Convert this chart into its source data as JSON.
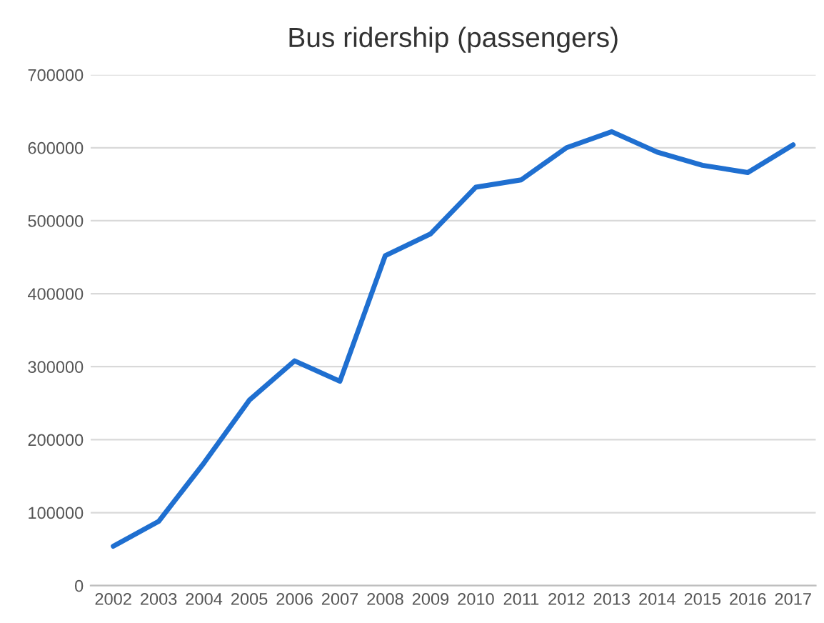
{
  "chart_data": {
    "type": "line",
    "title": "Bus ridership (passengers)",
    "categories": [
      "2002",
      "2003",
      "2004",
      "2005",
      "2006",
      "2007",
      "2008",
      "2009",
      "2010",
      "2011",
      "2012",
      "2013",
      "2014",
      "2015",
      "2016",
      "2017"
    ],
    "series": [
      {
        "color": "#1f6fd0",
        "values": [
          54000,
          88000,
          168000,
          254000,
          308000,
          280000,
          452000,
          482000,
          546000,
          556000,
          600000,
          622000,
          594000,
          576000,
          566000,
          604000
        ]
      }
    ],
    "ylim": [
      0,
      700000
    ],
    "yticks": [
      0,
      100000,
      200000,
      300000,
      400000,
      500000,
      600000,
      700000
    ],
    "grid": "y",
    "marker": "none",
    "line_style": "solid"
  }
}
